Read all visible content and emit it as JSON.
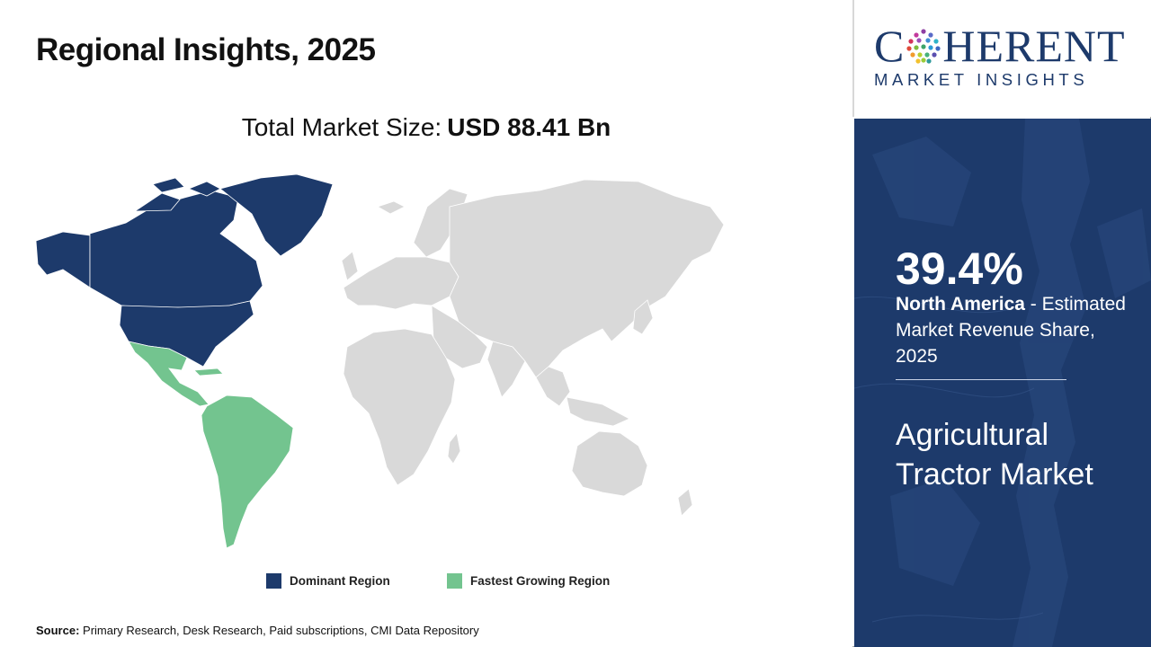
{
  "header": {
    "title": "Regional Insights, 2025"
  },
  "market_size": {
    "label": "Total Market Size:",
    "value": "USD 88.41 Bn"
  },
  "legend": {
    "items": [
      {
        "label": "Dominant Region",
        "color": "#1d3a6b"
      },
      {
        "label": "Fastest Growing Region",
        "color": "#73c48f"
      }
    ]
  },
  "map": {
    "dominant_region": "North America",
    "fastest_growing_region": "Latin America",
    "other_color": "#d9d9d9"
  },
  "source": {
    "key": "Source:",
    "text": "Primary Research, Desk Research, Paid subscriptions, CMI Data Repository"
  },
  "logo": {
    "main_prefix": "C",
    "main_suffix": "HERENT",
    "sub": "MARKET INSIGHTS",
    "color": "#1d3a6b"
  },
  "highlight": {
    "value": "39.4%",
    "region": "North America",
    "description": " - Estimated Market Revenue Share, 2025",
    "market_name": "Agricultural Tractor Market"
  },
  "colors": {
    "panel": "#1d3a6b",
    "dominant": "#1d3a6b",
    "fastest": "#73c48f",
    "other": "#d9d9d9"
  }
}
